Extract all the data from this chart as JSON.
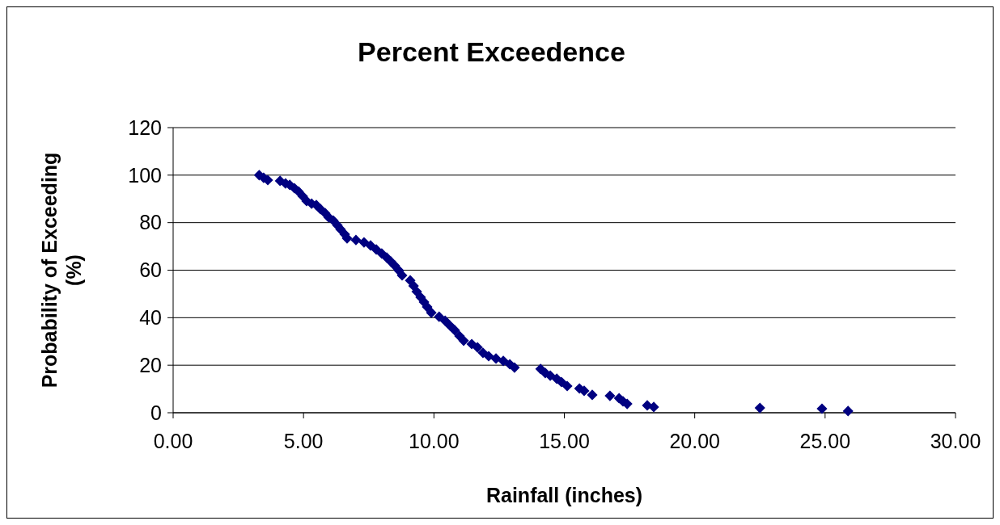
{
  "chart_data": {
    "type": "scatter",
    "title": "Percent Exceedence",
    "xlabel": "Rainfall (inches)",
    "ylabel": "Probability of Exceeding (%)",
    "xlim": [
      0,
      30
    ],
    "xticks": [
      {
        "value": 0,
        "label": "0.00"
      },
      {
        "value": 5,
        "label": "5.00"
      },
      {
        "value": 10,
        "label": "10.00"
      },
      {
        "value": 15,
        "label": "15.00"
      },
      {
        "value": 20,
        "label": "20.00"
      },
      {
        "value": 25,
        "label": "25.00"
      },
      {
        "value": 30,
        "label": "30.00"
      }
    ],
    "ylim": [
      0,
      120
    ],
    "yticks": [
      0,
      20,
      40,
      60,
      80,
      100,
      120
    ],
    "grid": "y",
    "marker": "diamond",
    "series": [
      {
        "color": "#000080",
        "x": [
          3.3,
          3.47,
          3.63,
          4.1,
          4.31,
          4.47,
          4.65,
          4.81,
          4.97,
          5.12,
          5.31,
          5.49,
          5.65,
          5.83,
          5.96,
          6.14,
          6.3,
          6.42,
          6.58,
          6.67,
          7.01,
          7.32,
          7.57,
          7.79,
          8.0,
          8.19,
          8.35,
          8.5,
          8.66,
          8.78,
          9.09,
          9.22,
          9.34,
          9.49,
          9.62,
          9.74,
          9.9,
          10.2,
          10.43,
          10.61,
          10.8,
          10.98,
          11.14,
          11.45,
          11.67,
          11.88,
          12.1,
          12.38,
          12.66,
          12.91,
          13.09,
          14.09,
          14.27,
          14.46,
          14.71,
          14.89,
          15.11,
          15.58,
          15.76,
          16.07,
          16.75,
          17.1,
          17.25,
          17.41,
          18.18,
          18.43,
          22.5,
          24.88,
          25.88
        ],
        "values": [
          100,
          98.9,
          97.9,
          97.6,
          96.5,
          95.9,
          94.5,
          93.1,
          91.1,
          89.1,
          88,
          87.4,
          85.7,
          84,
          82.3,
          80.9,
          78.9,
          77.2,
          75.1,
          73.4,
          72.7,
          71.7,
          70.4,
          68.7,
          67,
          65.3,
          63.6,
          61.9,
          59.8,
          57.8,
          55.7,
          53.4,
          51,
          48.6,
          46.6,
          44.5,
          42.1,
          40.4,
          38.7,
          36.7,
          34.7,
          32.3,
          30.3,
          28.9,
          27.5,
          25.2,
          23.8,
          22.8,
          21.8,
          20.4,
          19,
          18.4,
          16.7,
          15.6,
          14.3,
          12.9,
          11.2,
          10.2,
          9.2,
          7.5,
          7.1,
          6.1,
          4.8,
          3.7,
          3.1,
          2.4,
          2,
          1.7,
          0.7
        ]
      }
    ]
  }
}
